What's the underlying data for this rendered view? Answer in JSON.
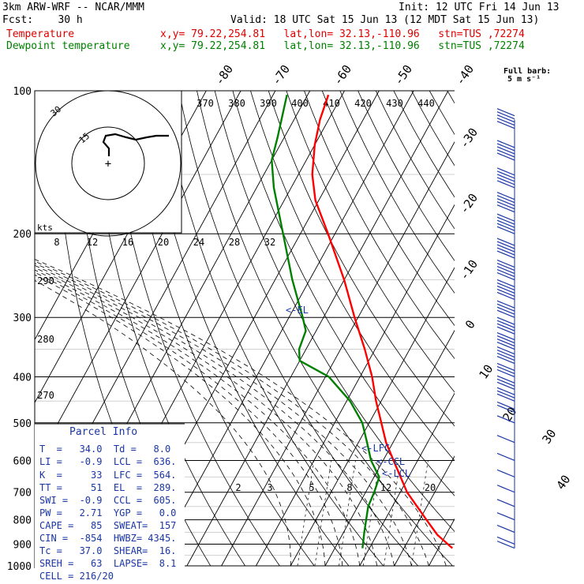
{
  "header": {
    "model": "3km ARW-WRF -- NCAR/MMM",
    "init": "Init: 12 UTC Fri 14 Jun 13",
    "fcst": "Fcst:    30 h",
    "valid": "Valid: 18 UTC Sat 15 Jun 13 (12 MDT Sat 15 Jun 13)",
    "temp_label": "Temperature",
    "dew_label": "Dewpoint temperature",
    "temp_loc": "x,y= 79.22,254.81   lat,lon= 32.13,-110.96   stn=TUS ,72274",
    "dew_loc": "x,y= 79.22,254.81   lat,lon= 32.13,-110.96   stn=TUS ,72274",
    "barb_title": "Full barb:",
    "barb_unit": "5 m s⁻¹"
  },
  "colors": {
    "temperature": "#ff0000",
    "dewpoint": "#008000",
    "text": "#1a36a6",
    "grid": "#000000"
  },
  "chart_data": {
    "type": "line",
    "pressure_levels": [
      100,
      200,
      300,
      400,
      500,
      600,
      700,
      800,
      900,
      1000
    ],
    "skewed_isotherm_labels": [
      -80,
      -70,
      -60,
      -50,
      -40,
      -30,
      -20,
      -10,
      0,
      10,
      20,
      30,
      40
    ],
    "theta_labels_top": [
      370,
      380,
      390,
      400,
      410,
      420,
      430,
      440
    ],
    "theta_labels_left": [
      290,
      280,
      270
    ],
    "mixing_ratio_labels": [
      2,
      3,
      5,
      8,
      12,
      20
    ],
    "hodograph": {
      "speed_unit": "kts",
      "speed_ticks": [
        8,
        12,
        16,
        20,
        24,
        28,
        32
      ],
      "ring_labels": [
        "30",
        "15"
      ]
    },
    "markers": [
      "<-EL",
      "<-LFC",
      "<-CCL",
      "<-LCL"
    ],
    "series": [
      {
        "name": "Temperature",
        "points": [
          {
            "p": 918,
            "t": 34.0
          },
          {
            "p": 860,
            "t": 27.5
          },
          {
            "p": 800,
            "t": 22.0
          },
          {
            "p": 700,
            "t": 12.0
          },
          {
            "p": 600,
            "t": 3.0
          },
          {
            "p": 550,
            "t": -2.0
          },
          {
            "p": 500,
            "t": -6.5
          },
          {
            "p": 450,
            "t": -11.5
          },
          {
            "p": 400,
            "t": -16.5
          },
          {
            "p": 350,
            "t": -23.0
          },
          {
            "p": 300,
            "t": -31.0
          },
          {
            "p": 250,
            "t": -40.0
          },
          {
            "p": 200,
            "t": -52.0
          },
          {
            "p": 170,
            "t": -61.0
          },
          {
            "p": 150,
            "t": -66.0
          },
          {
            "p": 130,
            "t": -70.0
          },
          {
            "p": 115,
            "t": -72.5
          },
          {
            "p": 102,
            "t": -74.0
          }
        ]
      },
      {
        "name": "Dewpoint temperature",
        "points": [
          {
            "p": 918,
            "t": 8.0
          },
          {
            "p": 850,
            "t": 6.0
          },
          {
            "p": 750,
            "t": 3.0
          },
          {
            "p": 700,
            "t": 2.5
          },
          {
            "p": 650,
            "t": 1.5
          },
          {
            "p": 600,
            "t": -3.5
          },
          {
            "p": 550,
            "t": -7.5
          },
          {
            "p": 500,
            "t": -12.0
          },
          {
            "p": 450,
            "t": -19.0
          },
          {
            "p": 400,
            "t": -29.0
          },
          {
            "p": 370,
            "t": -40.0
          },
          {
            "p": 350,
            "t": -42.0
          },
          {
            "p": 320,
            "t": -43.0
          },
          {
            "p": 300,
            "t": -46.0
          },
          {
            "p": 250,
            "t": -55.0
          },
          {
            "p": 200,
            "t": -65.0
          },
          {
            "p": 160,
            "t": -75.0
          },
          {
            "p": 140,
            "t": -80.0
          },
          {
            "p": 125,
            "t": -82.0
          },
          {
            "p": 102,
            "t": -86.0
          }
        ]
      }
    ],
    "wind_barbs": [
      {
        "p": 120,
        "spd": 30
      },
      {
        "p": 140,
        "spd": 30
      },
      {
        "p": 160,
        "spd": 30
      },
      {
        "p": 180,
        "spd": 30
      },
      {
        "p": 200,
        "spd": 25
      },
      {
        "p": 225,
        "spd": 25
      },
      {
        "p": 250,
        "spd": 25
      },
      {
        "p": 275,
        "spd": 25
      },
      {
        "p": 300,
        "spd": 20
      },
      {
        "p": 325,
        "spd": 20
      },
      {
        "p": 350,
        "spd": 20
      },
      {
        "p": 375,
        "spd": 20
      },
      {
        "p": 400,
        "spd": 15
      },
      {
        "p": 425,
        "spd": 15
      },
      {
        "p": 450,
        "spd": 15
      },
      {
        "p": 475,
        "spd": 10
      },
      {
        "p": 500,
        "spd": 5
      },
      {
        "p": 550,
        "spd": 5
      },
      {
        "p": 600,
        "spd": 5
      },
      {
        "p": 650,
        "spd": 5
      },
      {
        "p": 700,
        "spd": 5
      },
      {
        "p": 750,
        "spd": 5
      },
      {
        "p": 800,
        "spd": 5
      },
      {
        "p": 850,
        "spd": 5
      },
      {
        "p": 900,
        "spd": 5
      },
      {
        "p": 918,
        "spd": 5
      }
    ]
  },
  "parcel": {
    "title": "Parcel Info",
    "rows": [
      "T  =   34.0  Td =   8.0",
      "LI =   -0.9  LCL =  636.",
      "K  =     33  LFC =  564.",
      "TT =     51  EL  =  289.",
      "SWI =  -0.9  CCL =  605.",
      "PW =   2.71  YGP =   0.0",
      "CAPE =   85  SWEAT=  157",
      "CIN =  -854  HWBZ= 4345.",
      "Tc =   37.0  SHEAR=  16.",
      "SREH =   63  LAPSE=  8.1",
      "CELL = 216/20"
    ]
  }
}
